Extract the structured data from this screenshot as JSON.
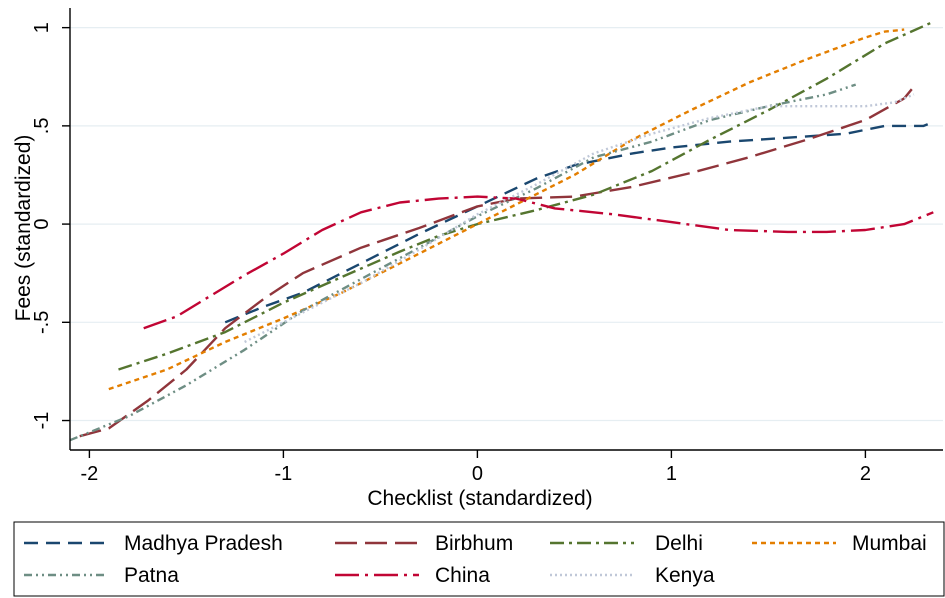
{
  "chart_data": {
    "type": "line",
    "title": "",
    "xlabel": "Checklist (standardized)",
    "ylabel": "Fees (standardized)",
    "xlim": [
      -2.1,
      2.4
    ],
    "ylim": [
      -1.15,
      1.1
    ],
    "x_ticks": [
      -2,
      -1,
      0,
      1,
      2
    ],
    "x_tick_labels": [
      "-2",
      "-1",
      "0",
      "1",
      "2"
    ],
    "y_ticks": [
      -1,
      -0.5,
      0,
      0.5,
      1
    ],
    "y_tick_labels": [
      "-1",
      "-.5",
      "0",
      ".5",
      "1"
    ],
    "grid": true,
    "legend_position": "bottom",
    "series": [
      {
        "name": "Madhya Pradesh",
        "color": "#1a476f",
        "dash": "14,8",
        "points": [
          [
            -1.3,
            -0.5
          ],
          [
            -1.1,
            -0.42
          ],
          [
            -0.9,
            -0.35
          ],
          [
            -0.6,
            -0.2
          ],
          [
            -0.3,
            -0.05
          ],
          [
            0,
            0.09
          ],
          [
            0.3,
            0.23
          ],
          [
            0.5,
            0.3
          ],
          [
            0.8,
            0.36
          ],
          [
            1.0,
            0.39
          ],
          [
            1.3,
            0.42
          ],
          [
            1.6,
            0.44
          ],
          [
            1.9,
            0.46
          ],
          [
            2.1,
            0.5
          ],
          [
            2.3,
            0.5
          ],
          [
            2.35,
            0.52
          ]
        ]
      },
      {
        "name": "Birbhum",
        "color": "#90353b",
        "dash": "22,8",
        "points": [
          [
            -2.05,
            -1.08
          ],
          [
            -1.9,
            -1.04
          ],
          [
            -1.7,
            -0.9
          ],
          [
            -1.5,
            -0.74
          ],
          [
            -1.3,
            -0.53
          ],
          [
            -1.1,
            -0.38
          ],
          [
            -0.9,
            -0.25
          ],
          [
            -0.6,
            -0.12
          ],
          [
            -0.3,
            -0.02
          ],
          [
            0,
            0.09
          ],
          [
            0.2,
            0.13
          ],
          [
            0.5,
            0.14
          ],
          [
            0.8,
            0.19
          ],
          [
            1.1,
            0.26
          ],
          [
            1.4,
            0.34
          ],
          [
            1.7,
            0.43
          ],
          [
            2.0,
            0.53
          ],
          [
            2.2,
            0.64
          ],
          [
            2.25,
            0.7
          ]
        ]
      },
      {
        "name": "Delhi",
        "color": "#55752f",
        "dash": "14,5,3,5",
        "points": [
          [
            -1.85,
            -0.74
          ],
          [
            -1.6,
            -0.66
          ],
          [
            -1.3,
            -0.55
          ],
          [
            -1.0,
            -0.4
          ],
          [
            -0.7,
            -0.27
          ],
          [
            -0.4,
            -0.14
          ],
          [
            -0.2,
            -0.06
          ],
          [
            0,
            0.0
          ],
          [
            0.3,
            0.07
          ],
          [
            0.6,
            0.15
          ],
          [
            0.9,
            0.27
          ],
          [
            1.2,
            0.43
          ],
          [
            1.5,
            0.58
          ],
          [
            1.8,
            0.74
          ],
          [
            2.1,
            0.92
          ],
          [
            2.35,
            1.03
          ]
        ]
      },
      {
        "name": "Mumbai",
        "color": "#e37e00",
        "dash": "5,4",
        "points": [
          [
            -1.9,
            -0.84
          ],
          [
            -1.6,
            -0.74
          ],
          [
            -1.3,
            -0.6
          ],
          [
            -1.0,
            -0.48
          ],
          [
            -0.7,
            -0.35
          ],
          [
            -0.4,
            -0.2
          ],
          [
            -0.1,
            -0.05
          ],
          [
            0.2,
            0.1
          ],
          [
            0.5,
            0.25
          ],
          [
            0.8,
            0.43
          ],
          [
            1.1,
            0.58
          ],
          [
            1.4,
            0.72
          ],
          [
            1.7,
            0.84
          ],
          [
            2.0,
            0.95
          ],
          [
            2.1,
            0.98
          ],
          [
            2.2,
            0.99
          ]
        ]
      },
      {
        "name": "Patna",
        "color": "#6e8e84",
        "dash": "8,4,2,4,2,4",
        "points": [
          [
            -2.1,
            -1.1
          ],
          [
            -1.8,
            -0.98
          ],
          [
            -1.5,
            -0.82
          ],
          [
            -1.2,
            -0.64
          ],
          [
            -0.9,
            -0.44
          ],
          [
            -0.6,
            -0.28
          ],
          [
            -0.3,
            -0.12
          ],
          [
            0,
            0.04
          ],
          [
            0.3,
            0.18
          ],
          [
            0.6,
            0.34
          ],
          [
            0.9,
            0.42
          ],
          [
            1.2,
            0.53
          ],
          [
            1.5,
            0.6
          ],
          [
            1.8,
            0.66
          ],
          [
            1.95,
            0.71
          ]
        ]
      },
      {
        "name": "China",
        "color": "#c10534",
        "dash": "24,6,3,6",
        "points": [
          [
            -1.72,
            -0.53
          ],
          [
            -1.55,
            -0.47
          ],
          [
            -1.4,
            -0.38
          ],
          [
            -1.2,
            -0.26
          ],
          [
            -1.0,
            -0.15
          ],
          [
            -0.8,
            -0.03
          ],
          [
            -0.6,
            0.06
          ],
          [
            -0.4,
            0.11
          ],
          [
            -0.2,
            0.13
          ],
          [
            0,
            0.14
          ],
          [
            0.2,
            0.13
          ],
          [
            0.4,
            0.08
          ],
          [
            0.7,
            0.05
          ],
          [
            1.0,
            0.01
          ],
          [
            1.3,
            -0.03
          ],
          [
            1.6,
            -0.04
          ],
          [
            1.8,
            -0.04
          ],
          [
            2.0,
            -0.03
          ],
          [
            2.2,
            0.0
          ],
          [
            2.35,
            0.06
          ]
        ]
      },
      {
        "name": "Kenya",
        "color": "#c0c8d8",
        "dash": "2,3",
        "points": [
          [
            -1.2,
            -0.6
          ],
          [
            -0.9,
            -0.45
          ],
          [
            -0.6,
            -0.3
          ],
          [
            -0.3,
            -0.13
          ],
          [
            0,
            0.05
          ],
          [
            0.3,
            0.2
          ],
          [
            0.6,
            0.36
          ],
          [
            0.9,
            0.46
          ],
          [
            1.2,
            0.54
          ],
          [
            1.5,
            0.6
          ],
          [
            1.8,
            0.6
          ],
          [
            2.0,
            0.6
          ],
          [
            2.15,
            0.62
          ],
          [
            2.25,
            0.66
          ]
        ]
      }
    ]
  }
}
